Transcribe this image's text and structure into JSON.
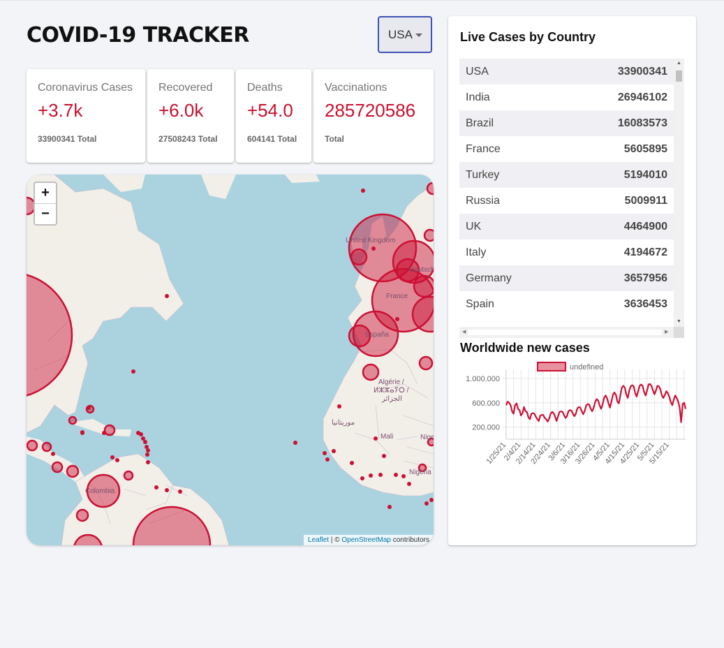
{
  "app": {
    "title": "COVID-19 TRACKER"
  },
  "country_select": {
    "value": "USA"
  },
  "stats": [
    {
      "title": "Coronavirus Cases",
      "value": "+3.7k",
      "total": "33900341 Total"
    },
    {
      "title": "Recovered",
      "value": "+6.0k",
      "total": "27508243 Total"
    },
    {
      "title": "Deaths",
      "value": "+54.0",
      "total": "604141 Total"
    },
    {
      "title": "Vaccinations",
      "value": "285720586",
      "total": "Total"
    }
  ],
  "map": {
    "zoom_in": "+",
    "zoom_out": "−",
    "attribution": {
      "leaflet": "Leaflet",
      "separator": " | © ",
      "osm": "OpenStreetMap",
      "suffix": " contributors"
    },
    "labels": [
      "United Kingdom",
      "France",
      "España",
      "Algérie /",
      "ⵍⵣⵣⴰⵢⵔ /",
      "الجزائر",
      "موريتانيا",
      "Mali",
      "Niger",
      "Nigeria",
      "Colombia",
      "Deutschland"
    ]
  },
  "live_cases": {
    "title": "Live Cases by Country",
    "rows": [
      {
        "country": "USA",
        "cases": "33900341"
      },
      {
        "country": "India",
        "cases": "26946102"
      },
      {
        "country": "Brazil",
        "cases": "16083573"
      },
      {
        "country": "France",
        "cases": "5605895"
      },
      {
        "country": "Turkey",
        "cases": "5194010"
      },
      {
        "country": "Russia",
        "cases": "5009911"
      },
      {
        "country": "UK",
        "cases": "4464900"
      },
      {
        "country": "Italy",
        "cases": "4194672"
      },
      {
        "country": "Germany",
        "cases": "3657956"
      },
      {
        "country": "Spain",
        "cases": "3636453"
      }
    ]
  },
  "worldwide_chart": {
    "title": "Worldwide new cases",
    "colors": {
      "line": "#cc1034",
      "fill": "#e8919f",
      "grid": "#e5e5e5"
    }
  },
  "chart_data": {
    "type": "line",
    "title": "Worldwide new cases",
    "legend": "undefined",
    "legend_position": "top",
    "grid": true,
    "ylim": [
      0,
      1150000
    ],
    "yticks": [
      200000,
      600000,
      1000000
    ],
    "ytick_labels": [
      "200.000",
      "600.000",
      "1.000.000"
    ],
    "xtick_labels": [
      "1/25/21",
      "2/4/21",
      "2/14/21",
      "2/24/21",
      "3/6/21",
      "3/16/21",
      "3/26/21",
      "4/5/21",
      "4/15/21",
      "4/25/21",
      "5/5/21",
      "5/15/21"
    ],
    "x_start": "1/25/21",
    "series": [
      {
        "values": [
          560000,
          620000,
          600000,
          560000,
          460000,
          420000,
          560000,
          590000,
          500000,
          480000,
          390000,
          430000,
          530000,
          460000,
          450000,
          360000,
          330000,
          420000,
          430000,
          420000,
          370000,
          330000,
          300000,
          390000,
          400000,
          400000,
          350000,
          330000,
          290000,
          340000,
          420000,
          450000,
          430000,
          370000,
          300000,
          380000,
          450000,
          460000,
          450000,
          400000,
          350000,
          380000,
          460000,
          480000,
          470000,
          420000,
          380000,
          420000,
          510000,
          530000,
          520000,
          460000,
          410000,
          470000,
          560000,
          580000,
          570000,
          500000,
          460000,
          520000,
          610000,
          660000,
          640000,
          560000,
          500000,
          570000,
          680000,
          720000,
          680000,
          590000,
          520000,
          620000,
          730000,
          770000,
          730000,
          620000,
          590000,
          720000,
          850000,
          880000,
          850000,
          740000,
          680000,
          800000,
          870000,
          890000,
          870000,
          760000,
          700000,
          790000,
          880000,
          900000,
          880000,
          780000,
          720000,
          800000,
          900000,
          910000,
          880000,
          800000,
          740000,
          800000,
          880000,
          870000,
          820000,
          720000,
          680000,
          730000,
          790000,
          760000,
          700000,
          610000,
          560000,
          650000,
          720000,
          680000,
          620000,
          520000,
          280000,
          580000,
          600000,
          500000
        ]
      }
    ]
  }
}
